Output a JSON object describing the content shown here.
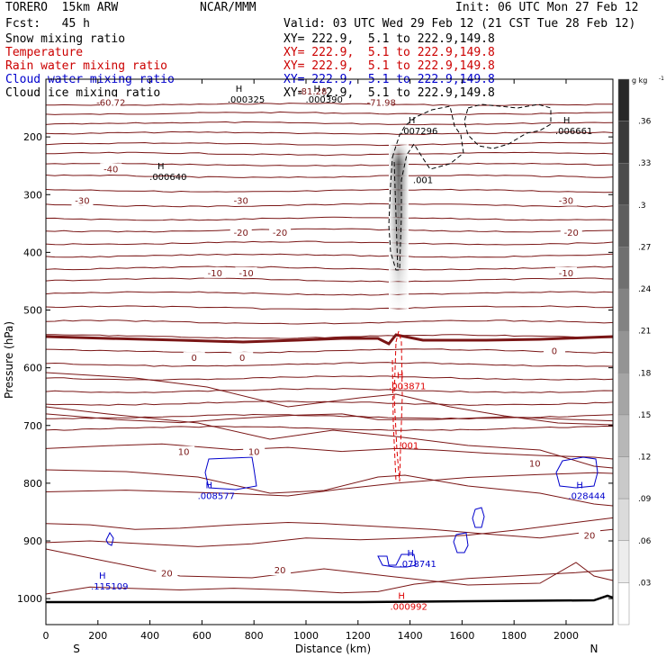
{
  "header": {
    "model": "TORERO  15km ARW",
    "center": "NCAR/MMM",
    "init": "Init: 06 UTC Mon 27 Feb 12",
    "fcst": "Fcst:   45 h",
    "valid": "Valid: 03 UTC Wed 29 Feb 12 (21 CST Tue 28 Feb 12)"
  },
  "fields": [
    {
      "name": "Snow mixing ratio",
      "xy": "XY= 222.9,  5.1 to 222.9,149.8",
      "color": "#000000"
    },
    {
      "name": "Temperature",
      "xy": "XY= 222.9,  5.1 to 222.9,149.8",
      "color": "#cc0000"
    },
    {
      "name": "Rain water mixing ratio",
      "xy": "XY= 222.9,  5.1 to 222.9,149.8",
      "color": "#cc0000"
    },
    {
      "name": "Cloud water mixing ratio",
      "xy": "XY= 222.9,  5.1 to 222.9,149.8",
      "color": "#0000cc"
    },
    {
      "name": "Cloud ice mixing ratio",
      "xy": "XY= 222.9,  5.1 to 222.9,149.8",
      "color": "#000000"
    }
  ],
  "colors": {
    "temperature": "#7a1616",
    "rain": "#dd0000",
    "cloud_water": "#0000cc",
    "snow": "#000000",
    "ground": "#000000"
  },
  "chart_data": {
    "type": "contour cross-section",
    "xlabel": "Distance (km)",
    "ylabel": "Pressure (hPa)",
    "xlim": [
      0,
      2180
    ],
    "ylim": [
      1045,
      100
    ],
    "x_ticks": [
      "0",
      "200",
      "400",
      "600",
      "800",
      "1000",
      "1200",
      "1400",
      "1600",
      "1800",
      "2000"
    ],
    "y_ticks": [
      "200",
      "300",
      "400",
      "500",
      "600",
      "700",
      "800",
      "900",
      "1000"
    ],
    "endpoints": {
      "left": "S",
      "right": "N"
    },
    "shading_scale": {
      "unit": "g kg",
      "unit_sup": "-1",
      "labels": [
        ".36",
        ".33",
        ".3",
        ".27",
        ".24",
        ".21",
        ".18",
        ".15",
        ".12",
        ".09",
        ".06",
        ".03"
      ]
    },
    "temperature_contours": [
      {
        "label": "-81.28",
        "p": 120,
        "x": 1025
      },
      {
        "label": "-71.98",
        "p": 140,
        "x": 1290
      },
      {
        "label": "-60.72",
        "p": 140,
        "x": 250
      },
      {
        "label": "-40",
        "p": 255,
        "x": 250
      },
      {
        "label": "-30",
        "p": 310,
        "x": 140
      },
      {
        "label": "-30",
        "p": 310,
        "x": 750
      },
      {
        "label": "-30",
        "p": 310,
        "x": 2000
      },
      {
        "label": "-20",
        "p": 365,
        "x": 750
      },
      {
        "label": "-20",
        "p": 365,
        "x": 900
      },
      {
        "label": "-20",
        "p": 365,
        "x": 2020
      },
      {
        "label": "-10",
        "p": 435,
        "x": 650
      },
      {
        "label": "-10",
        "p": 435,
        "x": 770
      },
      {
        "label": "-10",
        "p": 435,
        "x": 2000
      },
      {
        "label": "0",
        "p": 582,
        "x": 570
      },
      {
        "label": "0",
        "p": 582,
        "x": 755
      },
      {
        "label": "0",
        "p": 570,
        "x": 1955
      },
      {
        "label": "10",
        "p": 745,
        "x": 530
      },
      {
        "label": "10",
        "p": 745,
        "x": 800
      },
      {
        "label": "10",
        "p": 765,
        "x": 1880
      },
      {
        "label": "20",
        "p": 955,
        "x": 465
      },
      {
        "label": "20",
        "p": 950,
        "x": 900
      },
      {
        "label": "20",
        "p": 890,
        "x": 2090
      }
    ],
    "extrema": [
      {
        "field": "snow",
        "mark": "H",
        "value": ".000325",
        "p": 128,
        "x": 770
      },
      {
        "field": "snow",
        "mark": "H",
        "value": ".000390",
        "p": 128,
        "x": 1070
      },
      {
        "field": "snow",
        "mark": "H",
        "value": ".007296",
        "p": 183,
        "x": 1435
      },
      {
        "field": "snow",
        "mark": "H",
        "value": ".006661",
        "p": 183,
        "x": 2030
      },
      {
        "field": "snow",
        "mark": "H",
        "value": ".000640",
        "p": 262,
        "x": 470
      },
      {
        "field": "snow",
        "mark": "",
        "value": ".001",
        "p": 268,
        "x": 1450
      },
      {
        "field": "rain",
        "mark": "H",
        "value": ".003871",
        "p": 625,
        "x": 1390
      },
      {
        "field": "rain",
        "mark": "",
        "value": ".001",
        "p": 728,
        "x": 1395
      },
      {
        "field": "rain",
        "mark": "H",
        "value": ".000992",
        "p": 1007,
        "x": 1395
      },
      {
        "field": "cloud_water",
        "mark": "H",
        "value": ".008577",
        "p": 815,
        "x": 655
      },
      {
        "field": "cloud_water",
        "mark": "H",
        "value": ".028444",
        "p": 815,
        "x": 2080
      },
      {
        "field": "cloud_water",
        "mark": "H",
        "value": ".115109",
        "p": 972,
        "x": 245
      },
      {
        "field": "cloud_water",
        "mark": "H",
        "value": ".078741",
        "p": 933,
        "x": 1430
      }
    ]
  }
}
